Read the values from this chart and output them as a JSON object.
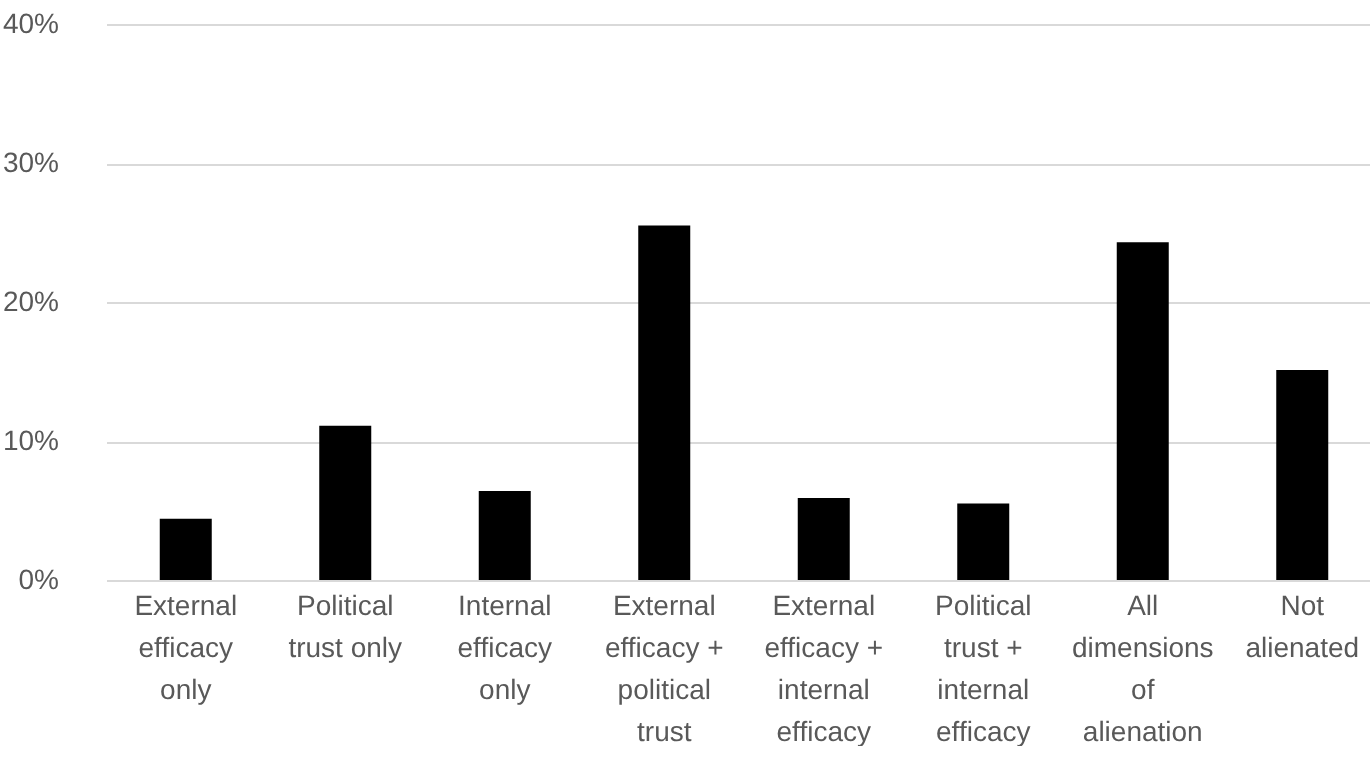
{
  "chart_data": {
    "type": "bar",
    "categories": [
      "External efficacy only",
      "Political trust only",
      "Internal efficacy only",
      "External efficacy + political trust",
      "External efficacy + internal efficacy",
      "Political trust + internal efficacy",
      "All dimensions of alienation",
      "Not alienated"
    ],
    "values": [
      4.4,
      11.1,
      6.4,
      25.5,
      5.9,
      5.5,
      24.3,
      15.1
    ],
    "color": "#000000",
    "ylim": [
      0,
      40
    ],
    "yticks": [
      {
        "value": 0,
        "label": "0%"
      },
      {
        "value": 10,
        "label": "10%"
      },
      {
        "value": 20,
        "label": "20%"
      },
      {
        "value": 30,
        "label": "30%"
      },
      {
        "value": 40,
        "label": "40%"
      }
    ],
    "grid": "y"
  }
}
